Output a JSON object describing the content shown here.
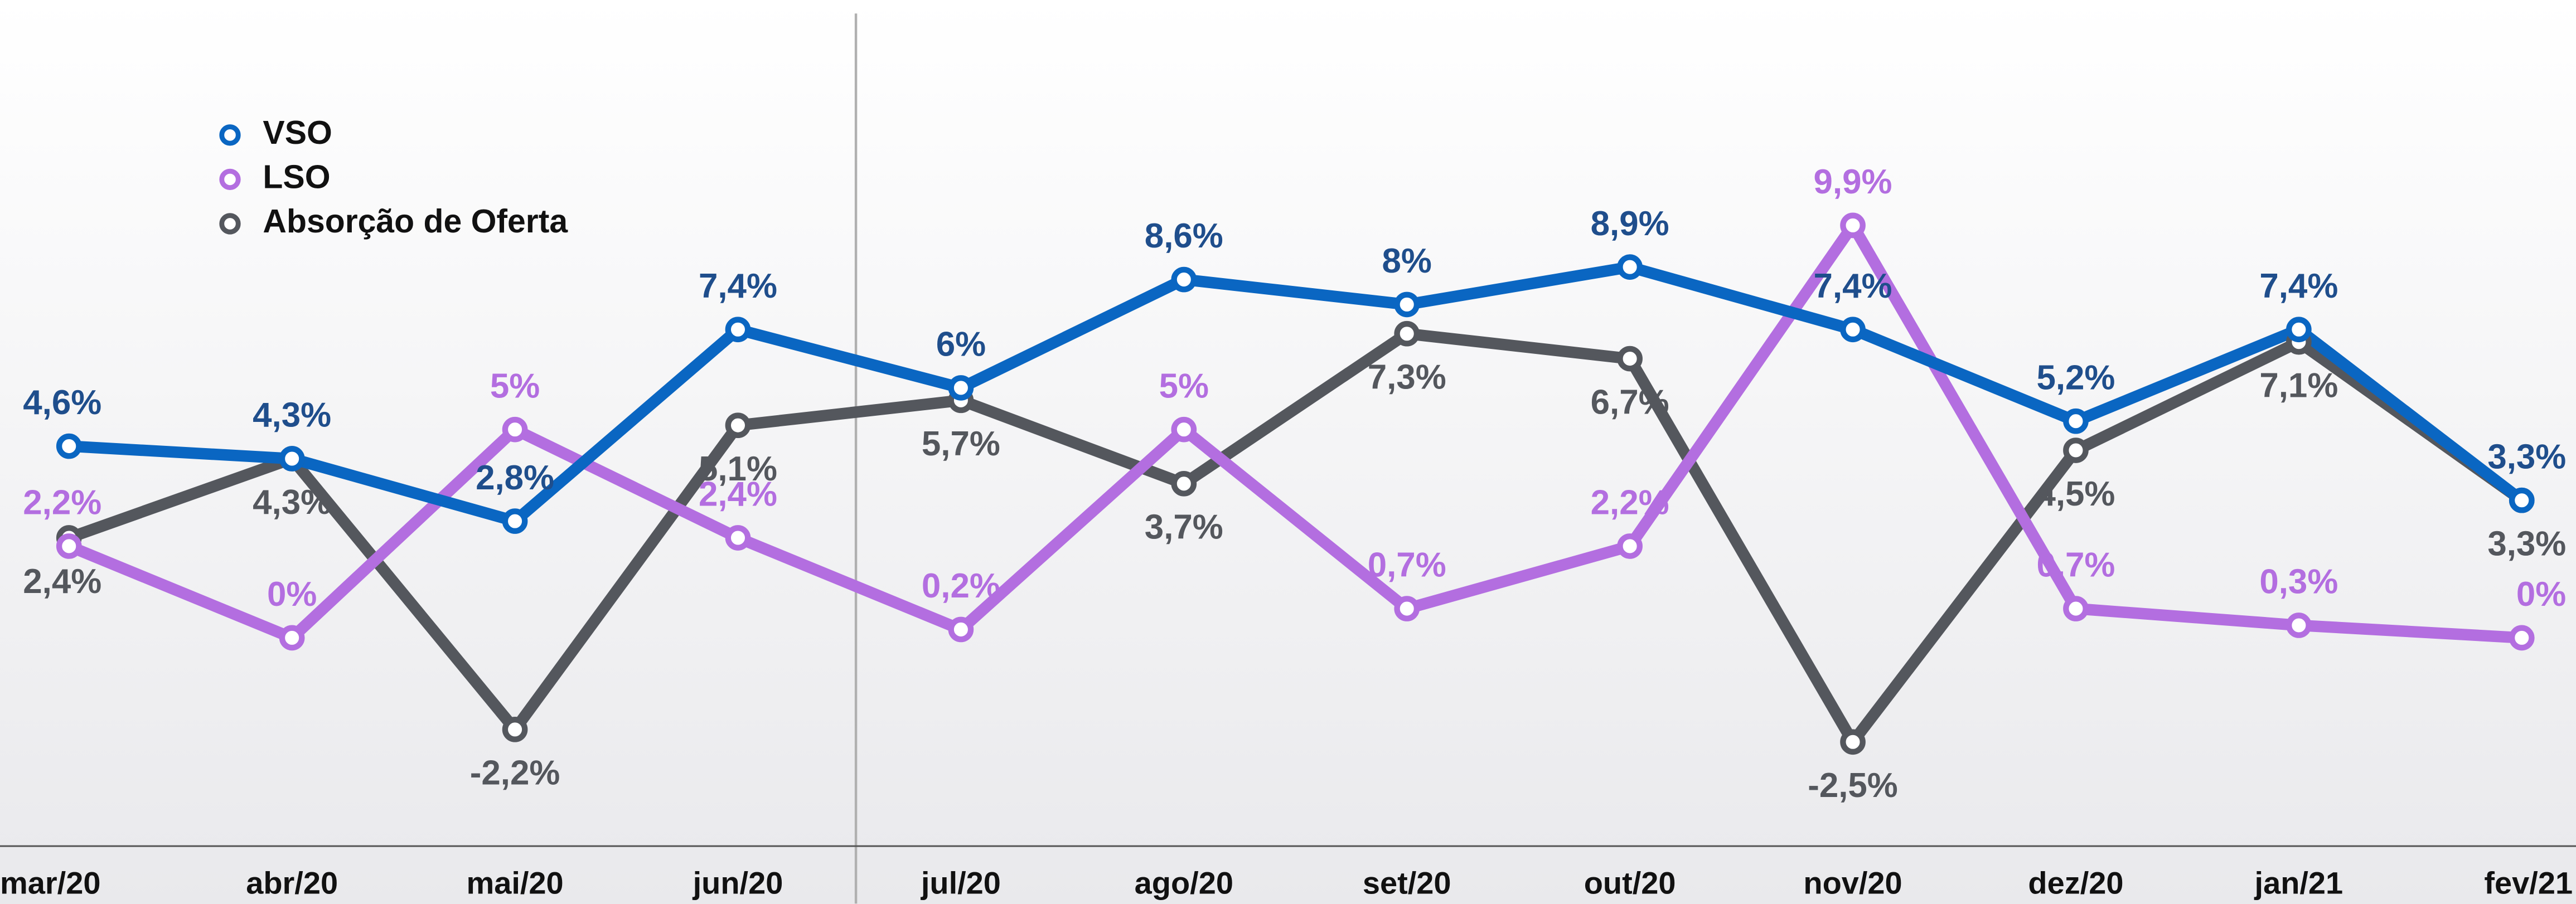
{
  "chart_data": {
    "type": "line",
    "categories": [
      "mar/20",
      "abr/20",
      "mai/20",
      "jun/20",
      "jul/20",
      "ago/20",
      "set/20",
      "out/20",
      "nov/20",
      "dez/20",
      "jan/21",
      "fev/21"
    ],
    "ylim": [
      -5,
      15.3
    ],
    "legend": "top-left",
    "series": [
      {
        "name": "VSO",
        "color": "#0a66c2",
        "label_color": "#1f4e8c",
        "values": [
          4.6,
          4.3,
          2.8,
          7.4,
          6,
          8.6,
          8,
          8.9,
          7.4,
          5.2,
          7.4,
          3.3
        ],
        "value_labels": [
          "4,6%",
          "4,3%",
          "2,8%",
          "7,4%",
          "6%",
          "8,6%",
          "8%",
          "8,9%",
          "7,4%",
          "5,2%",
          "7,4%",
          "3,3%"
        ]
      },
      {
        "name": "LSO",
        "color": "#b36ee0",
        "label_color": "#b36ee0",
        "values": [
          2.2,
          0,
          5,
          2.4,
          0.2,
          5,
          0.7,
          2.2,
          9.9,
          0.7,
          0.3,
          0
        ],
        "value_labels": [
          "2,2%",
          "0%",
          "5%",
          "2,4%",
          "0,2%",
          "5%",
          "0,7%",
          "2,2%",
          "9,9%",
          "0,7%",
          "0,3%",
          "0%"
        ]
      },
      {
        "name": "Absorção de Oferta",
        "color": "#54575d",
        "label_color": "#54575d",
        "values": [
          2.4,
          4.3,
          -2.2,
          5.1,
          5.7,
          3.7,
          7.3,
          6.7,
          -2.5,
          4.5,
          7.1,
          3.3
        ],
        "value_labels": [
          "2,4%",
          "4,3%",
          "-2,2%",
          "5,1%",
          "5,7%",
          "3,7%",
          "7,3%",
          "6,7%",
          "-2,5%",
          "4,5%",
          "7,1%",
          "3,3%"
        ]
      }
    ]
  }
}
